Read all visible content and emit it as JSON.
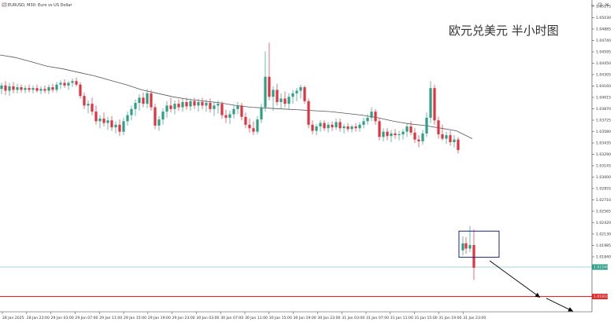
{
  "window": {
    "header_text": "EURUSD, M30: Euro vs US Dollar",
    "chart_title": "欧元兑美元 半小时图"
  },
  "colors": {
    "background": "#ffffff",
    "bull_candle": "#2e9e87",
    "bear_candle": "#e0333f",
    "moving_average": "#555555",
    "price_line": "#7fd1c6",
    "support_line": "#e02a2a",
    "highlight_box": "#1a237e",
    "arrow": "#000000"
  },
  "icons": [
    "chart-window-icon",
    "minimize-icon",
    "maximize-icon",
    "close-icon"
  ],
  "price_axis": {
    "labels": [
      "1.05175",
      "1.05030",
      "1.04885",
      "1.04740",
      "1.04595",
      "1.04450",
      "1.04305",
      "1.04160",
      "1.04015",
      "1.03870",
      "1.03725",
      "1.03580",
      "1.03435",
      "1.03290",
      "1.03145",
      "1.03000",
      "1.02855",
      "1.02710",
      "1.02565",
      "1.02420",
      "1.02130",
      "1.01985",
      "1.01840"
    ],
    "current_price_label": "1.02248",
    "support_price_label": "1.01910"
  },
  "time_axis": {
    "labels": [
      "28 Jan 2025",
      "28 Jan 23:00",
      "29 Jan 03:00",
      "29 Jan 07:00",
      "29 Jan 11:00",
      "29 Jan 15:00",
      "29 Jan 19:00",
      "29 Jan 23:00",
      "30 Jan 03:00",
      "30 Jan 07:00",
      "30 Jan 11:00",
      "30 Jan 15:00",
      "30 Jan 19:00",
      "30 Jan 23:00",
      "31 Jan 03:00",
      "31 Jan 07:00",
      "31 Jan 11:00",
      "31 Jan 15:00",
      "31 Jan 19:00",
      "31 Jan 23:00"
    ]
  },
  "chart_data": {
    "type": "candlestick",
    "symbol": "EURUSD",
    "timeframe": "M30",
    "ylim": [
      1.0178,
      1.0522
    ],
    "current_price": 1.02248,
    "support_level": 1.0191,
    "moving_average": [
      [
        0,
        1.0468
      ],
      [
        20,
        1.0465
      ],
      [
        40,
        1.046
      ],
      [
        60,
        1.0455
      ],
      [
        80,
        1.0452
      ],
      [
        100,
        1.0448
      ],
      [
        120,
        1.0444
      ],
      [
        140,
        1.0439
      ],
      [
        160,
        1.0434
      ],
      [
        180,
        1.0428
      ],
      [
        200,
        1.0424
      ],
      [
        220,
        1.042
      ],
      [
        240,
        1.0417
      ],
      [
        260,
        1.0415
      ],
      [
        280,
        1.0413
      ],
      [
        300,
        1.041
      ],
      [
        320,
        1.0408
      ],
      [
        340,
        1.0407
      ],
      [
        360,
        1.0406
      ],
      [
        380,
        1.0405
      ],
      [
        400,
        1.0404
      ],
      [
        420,
        1.0403
      ],
      [
        440,
        1.0401
      ],
      [
        460,
        1.0399
      ],
      [
        480,
        1.0396
      ],
      [
        500,
        1.0392
      ],
      [
        520,
        1.0389
      ],
      [
        540,
        1.0387
      ],
      [
        560,
        1.0384
      ],
      [
        580,
        1.0381
      ],
      [
        600,
        1.0372
      ]
    ],
    "candles": [
      {
        "t": 2,
        "o": 1.0429,
        "h": 1.0436,
        "l": 1.0423,
        "c": 1.0433
      },
      {
        "t": 7,
        "o": 1.0433,
        "h": 1.0438,
        "l": 1.0422,
        "c": 1.0427
      },
      {
        "t": 12,
        "o": 1.0427,
        "h": 1.0436,
        "l": 1.0421,
        "c": 1.0432
      },
      {
        "t": 17,
        "o": 1.0432,
        "h": 1.0437,
        "l": 1.0424,
        "c": 1.0428
      },
      {
        "t": 22,
        "o": 1.0428,
        "h": 1.0435,
        "l": 1.0424,
        "c": 1.0431
      },
      {
        "t": 27,
        "o": 1.0431,
        "h": 1.0434,
        "l": 1.0425,
        "c": 1.0428
      },
      {
        "t": 32,
        "o": 1.0428,
        "h": 1.0433,
        "l": 1.0424,
        "c": 1.043
      },
      {
        "t": 37,
        "o": 1.043,
        "h": 1.0434,
        "l": 1.0425,
        "c": 1.0428
      },
      {
        "t": 42,
        "o": 1.0428,
        "h": 1.0433,
        "l": 1.0424,
        "c": 1.043
      },
      {
        "t": 47,
        "o": 1.043,
        "h": 1.0434,
        "l": 1.0425,
        "c": 1.0427
      },
      {
        "t": 52,
        "o": 1.0427,
        "h": 1.0432,
        "l": 1.0423,
        "c": 1.0429
      },
      {
        "t": 57,
        "o": 1.0429,
        "h": 1.0433,
        "l": 1.0424,
        "c": 1.0427
      },
      {
        "t": 62,
        "o": 1.0427,
        "h": 1.0434,
        "l": 1.0423,
        "c": 1.0431
      },
      {
        "t": 67,
        "o": 1.0431,
        "h": 1.0435,
        "l": 1.0425,
        "c": 1.0428
      },
      {
        "t": 72,
        "o": 1.0428,
        "h": 1.0437,
        "l": 1.0425,
        "c": 1.0434
      },
      {
        "t": 77,
        "o": 1.0434,
        "h": 1.0439,
        "l": 1.0429,
        "c": 1.0436
      },
      {
        "t": 82,
        "o": 1.0436,
        "h": 1.044,
        "l": 1.043,
        "c": 1.0433
      },
      {
        "t": 87,
        "o": 1.0433,
        "h": 1.0438,
        "l": 1.0428,
        "c": 1.0436
      },
      {
        "t": 92,
        "o": 1.0436,
        "h": 1.0441,
        "l": 1.0431,
        "c": 1.0438
      },
      {
        "t": 97,
        "o": 1.0438,
        "h": 1.0442,
        "l": 1.0432,
        "c": 1.0434
      },
      {
        "t": 102,
        "o": 1.0434,
        "h": 1.0437,
        "l": 1.0418,
        "c": 1.0421
      },
      {
        "t": 107,
        "o": 1.0421,
        "h": 1.0425,
        "l": 1.0406,
        "c": 1.041
      },
      {
        "t": 112,
        "o": 1.041,
        "h": 1.0416,
        "l": 1.0401,
        "c": 1.0412
      },
      {
        "t": 117,
        "o": 1.0412,
        "h": 1.0419,
        "l": 1.0399,
        "c": 1.0403
      },
      {
        "t": 122,
        "o": 1.0403,
        "h": 1.041,
        "l": 1.0388,
        "c": 1.0392
      },
      {
        "t": 127,
        "o": 1.0392,
        "h": 1.0399,
        "l": 1.0384,
        "c": 1.0395
      },
      {
        "t": 132,
        "o": 1.0395,
        "h": 1.0402,
        "l": 1.0386,
        "c": 1.039
      },
      {
        "t": 137,
        "o": 1.039,
        "h": 1.0397,
        "l": 1.0382,
        "c": 1.0393
      },
      {
        "t": 142,
        "o": 1.0393,
        "h": 1.0398,
        "l": 1.0381,
        "c": 1.0385
      },
      {
        "t": 147,
        "o": 1.0385,
        "h": 1.0392,
        "l": 1.0378,
        "c": 1.0388
      },
      {
        "t": 152,
        "o": 1.0388,
        "h": 1.0394,
        "l": 1.0375,
        "c": 1.038
      },
      {
        "t": 157,
        "o": 1.038,
        "h": 1.0396,
        "l": 1.0376,
        "c": 1.0392
      },
      {
        "t": 162,
        "o": 1.0392,
        "h": 1.0403,
        "l": 1.0387,
        "c": 1.0399
      },
      {
        "t": 167,
        "o": 1.0399,
        "h": 1.041,
        "l": 1.0393,
        "c": 1.0406
      },
      {
        "t": 172,
        "o": 1.0406,
        "h": 1.0417,
        "l": 1.0398,
        "c": 1.0413
      },
      {
        "t": 177,
        "o": 1.0413,
        "h": 1.0423,
        "l": 1.0404,
        "c": 1.0419
      },
      {
        "t": 182,
        "o": 1.0419,
        "h": 1.0425,
        "l": 1.0408,
        "c": 1.0412
      },
      {
        "t": 187,
        "o": 1.0412,
        "h": 1.0429,
        "l": 1.0407,
        "c": 1.0424
      },
      {
        "t": 192,
        "o": 1.0424,
        "h": 1.0428,
        "l": 1.0404,
        "c": 1.0408
      },
      {
        "t": 197,
        "o": 1.0408,
        "h": 1.0412,
        "l": 1.0383,
        "c": 1.0387
      },
      {
        "t": 202,
        "o": 1.0387,
        "h": 1.0398,
        "l": 1.0381,
        "c": 1.0394
      },
      {
        "t": 207,
        "o": 1.0394,
        "h": 1.0407,
        "l": 1.0388,
        "c": 1.0403
      },
      {
        "t": 212,
        "o": 1.0403,
        "h": 1.0415,
        "l": 1.0396,
        "c": 1.041
      },
      {
        "t": 217,
        "o": 1.041,
        "h": 1.0419,
        "l": 1.0402,
        "c": 1.0406
      },
      {
        "t": 222,
        "o": 1.0406,
        "h": 1.0416,
        "l": 1.04,
        "c": 1.0412
      },
      {
        "t": 227,
        "o": 1.0412,
        "h": 1.0417,
        "l": 1.0404,
        "c": 1.0408
      },
      {
        "t": 232,
        "o": 1.0408,
        "h": 1.0418,
        "l": 1.0403,
        "c": 1.0414
      },
      {
        "t": 237,
        "o": 1.0414,
        "h": 1.0419,
        "l": 1.0405,
        "c": 1.0409
      },
      {
        "t": 242,
        "o": 1.0409,
        "h": 1.0418,
        "l": 1.0404,
        "c": 1.0415
      },
      {
        "t": 247,
        "o": 1.0415,
        "h": 1.0419,
        "l": 1.0406,
        "c": 1.041
      },
      {
        "t": 252,
        "o": 1.041,
        "h": 1.0418,
        "l": 1.0403,
        "c": 1.0414
      },
      {
        "t": 257,
        "o": 1.0414,
        "h": 1.0419,
        "l": 1.0406,
        "c": 1.041
      },
      {
        "t": 262,
        "o": 1.041,
        "h": 1.0417,
        "l": 1.0403,
        "c": 1.0413
      },
      {
        "t": 267,
        "o": 1.0413,
        "h": 1.0418,
        "l": 1.0402,
        "c": 1.0406
      },
      {
        "t": 272,
        "o": 1.0406,
        "h": 1.0414,
        "l": 1.0398,
        "c": 1.041
      },
      {
        "t": 277,
        "o": 1.041,
        "h": 1.0416,
        "l": 1.0401,
        "c": 1.0412
      },
      {
        "t": 282,
        "o": 1.0412,
        "h": 1.0415,
        "l": 1.0395,
        "c": 1.0399
      },
      {
        "t": 287,
        "o": 1.0399,
        "h": 1.0405,
        "l": 1.039,
        "c": 1.0396
      },
      {
        "t": 292,
        "o": 1.0396,
        "h": 1.0404,
        "l": 1.0389,
        "c": 1.04
      },
      {
        "t": 297,
        "o": 1.04,
        "h": 1.041,
        "l": 1.0395,
        "c": 1.0406
      },
      {
        "t": 302,
        "o": 1.0406,
        "h": 1.0414,
        "l": 1.04,
        "c": 1.041
      },
      {
        "t": 307,
        "o": 1.041,
        "h": 1.0413,
        "l": 1.0393,
        "c": 1.0397
      },
      {
        "t": 312,
        "o": 1.0397,
        "h": 1.0402,
        "l": 1.0384,
        "c": 1.0388
      },
      {
        "t": 317,
        "o": 1.0388,
        "h": 1.0395,
        "l": 1.0379,
        "c": 1.0384
      },
      {
        "t": 322,
        "o": 1.0384,
        "h": 1.0392,
        "l": 1.0376,
        "c": 1.038
      },
      {
        "t": 327,
        "o": 1.038,
        "h": 1.0398,
        "l": 1.0377,
        "c": 1.0394
      },
      {
        "t": 332,
        "o": 1.0394,
        "h": 1.0412,
        "l": 1.039,
        "c": 1.0408
      },
      {
        "t": 337,
        "o": 1.0408,
        "h": 1.0472,
        "l": 1.0403,
        "c": 1.0443
      },
      {
        "t": 342,
        "o": 1.0443,
        "h": 1.0482,
        "l": 1.0416,
        "c": 1.042
      },
      {
        "t": 347,
        "o": 1.042,
        "h": 1.0432,
        "l": 1.0404,
        "c": 1.0428
      },
      {
        "t": 352,
        "o": 1.0428,
        "h": 1.0435,
        "l": 1.041,
        "c": 1.0414
      },
      {
        "t": 357,
        "o": 1.0414,
        "h": 1.0424,
        "l": 1.0406,
        "c": 1.0418
      },
      {
        "t": 362,
        "o": 1.0418,
        "h": 1.0426,
        "l": 1.0408,
        "c": 1.0412
      },
      {
        "t": 367,
        "o": 1.0412,
        "h": 1.0424,
        "l": 1.0406,
        "c": 1.042
      },
      {
        "t": 372,
        "o": 1.042,
        "h": 1.0428,
        "l": 1.0412,
        "c": 1.0424
      },
      {
        "t": 377,
        "o": 1.0424,
        "h": 1.043,
        "l": 1.0415,
        "c": 1.0427
      },
      {
        "t": 382,
        "o": 1.0427,
        "h": 1.0434,
        "l": 1.0418,
        "c": 1.0431
      },
      {
        "t": 387,
        "o": 1.0431,
        "h": 1.0433,
        "l": 1.0412,
        "c": 1.0415
      },
      {
        "t": 392,
        "o": 1.0415,
        "h": 1.0418,
        "l": 1.0384,
        "c": 1.0388
      },
      {
        "t": 397,
        "o": 1.0388,
        "h": 1.0393,
        "l": 1.0377,
        "c": 1.0381
      },
      {
        "t": 402,
        "o": 1.0381,
        "h": 1.0389,
        "l": 1.0376,
        "c": 1.0386
      },
      {
        "t": 407,
        "o": 1.0386,
        "h": 1.0393,
        "l": 1.038,
        "c": 1.039
      },
      {
        "t": 412,
        "o": 1.039,
        "h": 1.0393,
        "l": 1.0381,
        "c": 1.0384
      },
      {
        "t": 417,
        "o": 1.0384,
        "h": 1.0391,
        "l": 1.0379,
        "c": 1.0388
      },
      {
        "t": 422,
        "o": 1.0388,
        "h": 1.0392,
        "l": 1.0381,
        "c": 1.0385
      },
      {
        "t": 427,
        "o": 1.0385,
        "h": 1.0395,
        "l": 1.0382,
        "c": 1.0391
      },
      {
        "t": 432,
        "o": 1.0391,
        "h": 1.0395,
        "l": 1.038,
        "c": 1.0384
      },
      {
        "t": 437,
        "o": 1.0384,
        "h": 1.0389,
        "l": 1.0378,
        "c": 1.0386
      },
      {
        "t": 442,
        "o": 1.0386,
        "h": 1.039,
        "l": 1.038,
        "c": 1.0383
      },
      {
        "t": 447,
        "o": 1.0383,
        "h": 1.0388,
        "l": 1.0379,
        "c": 1.0386
      },
      {
        "t": 452,
        "o": 1.0386,
        "h": 1.039,
        "l": 1.038,
        "c": 1.0384
      },
      {
        "t": 457,
        "o": 1.0384,
        "h": 1.0391,
        "l": 1.038,
        "c": 1.0388
      },
      {
        "t": 462,
        "o": 1.0388,
        "h": 1.0396,
        "l": 1.0384,
        "c": 1.0392
      },
      {
        "t": 467,
        "o": 1.0392,
        "h": 1.04,
        "l": 1.0388,
        "c": 1.0396
      },
      {
        "t": 472,
        "o": 1.0396,
        "h": 1.0408,
        "l": 1.0392,
        "c": 1.0403
      },
      {
        "t": 477,
        "o": 1.0403,
        "h": 1.0406,
        "l": 1.0388,
        "c": 1.0392
      },
      {
        "t": 482,
        "o": 1.0392,
        "h": 1.0395,
        "l": 1.037,
        "c": 1.0374
      },
      {
        "t": 487,
        "o": 1.0374,
        "h": 1.0384,
        "l": 1.0369,
        "c": 1.038
      },
      {
        "t": 492,
        "o": 1.038,
        "h": 1.0384,
        "l": 1.037,
        "c": 1.0375
      },
      {
        "t": 497,
        "o": 1.0375,
        "h": 1.0382,
        "l": 1.0368,
        "c": 1.0378
      },
      {
        "t": 502,
        "o": 1.0378,
        "h": 1.0383,
        "l": 1.0372,
        "c": 1.0376
      },
      {
        "t": 507,
        "o": 1.0376,
        "h": 1.0381,
        "l": 1.037,
        "c": 1.0377
      },
      {
        "t": 512,
        "o": 1.0377,
        "h": 1.0383,
        "l": 1.0371,
        "c": 1.038
      },
      {
        "t": 517,
        "o": 1.038,
        "h": 1.0389,
        "l": 1.0374,
        "c": 1.0386
      },
      {
        "t": 522,
        "o": 1.0386,
        "h": 1.0392,
        "l": 1.0376,
        "c": 1.0379
      },
      {
        "t": 527,
        "o": 1.0379,
        "h": 1.0384,
        "l": 1.0367,
        "c": 1.0371
      },
      {
        "t": 532,
        "o": 1.0371,
        "h": 1.0376,
        "l": 1.0362,
        "c": 1.0369
      },
      {
        "t": 537,
        "o": 1.0369,
        "h": 1.0382,
        "l": 1.0365,
        "c": 1.0378
      },
      {
        "t": 542,
        "o": 1.0378,
        "h": 1.0402,
        "l": 1.0374,
        "c": 1.0396
      },
      {
        "t": 547,
        "o": 1.0396,
        "h": 1.0438,
        "l": 1.039,
        "c": 1.043
      },
      {
        "t": 552,
        "o": 1.043,
        "h": 1.0434,
        "l": 1.0388,
        "c": 1.0393
      },
      {
        "t": 557,
        "o": 1.0393,
        "h": 1.0397,
        "l": 1.0372,
        "c": 1.0377
      },
      {
        "t": 562,
        "o": 1.0377,
        "h": 1.0388,
        "l": 1.037,
        "c": 1.0372
      },
      {
        "t": 567,
        "o": 1.0372,
        "h": 1.038,
        "l": 1.0366,
        "c": 1.0376
      },
      {
        "t": 572,
        "o": 1.0376,
        "h": 1.0381,
        "l": 1.0364,
        "c": 1.0368
      },
      {
        "t": 577,
        "o": 1.0368,
        "h": 1.0376,
        "l": 1.0362,
        "c": 1.0371
      },
      {
        "t": 582,
        "o": 1.0371,
        "h": 1.0374,
        "l": 1.0355,
        "c": 1.0359
      },
      {
        "t": 588,
        "o": 1.0244,
        "h": 1.026,
        "l": 1.0238,
        "c": 1.0252
      },
      {
        "t": 592,
        "o": 1.0252,
        "h": 1.0259,
        "l": 1.024,
        "c": 1.0246
      },
      {
        "t": 597,
        "o": 1.0246,
        "h": 1.0272,
        "l": 1.0242,
        "c": 1.025
      },
      {
        "t": 602,
        "o": 1.025,
        "h": 1.0268,
        "l": 1.021,
        "c": 1.0224
      }
    ],
    "highlight_box": {
      "t0": 583,
      "t1": 634,
      "p_high": 1.0266,
      "p_low": 1.0236
    },
    "arrows": [
      {
        "t0": 622,
        "p0": 1.0232,
        "t1": 686,
        "p1": 1.019
      },
      {
        "t0": 694,
        "p0": 1.0189,
        "t1": 728,
        "p1": 1.0174
      }
    ]
  }
}
